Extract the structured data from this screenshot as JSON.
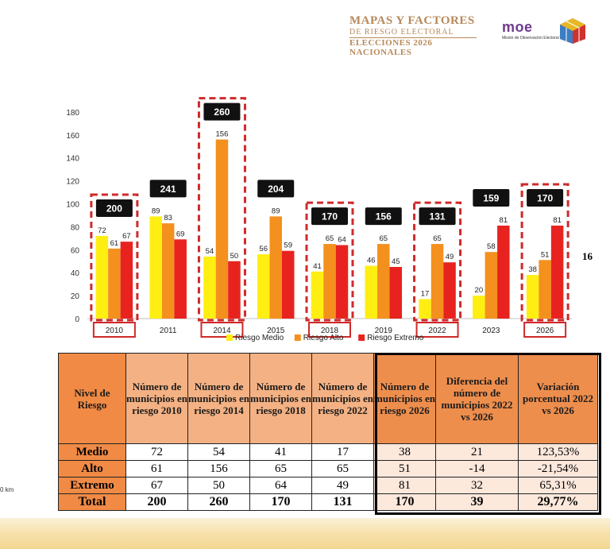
{
  "header": {
    "title_line1": "MAPAS Y FACTORES",
    "title_line2": "DE RIESGO ELECTORAL",
    "title_line3": "ELECCIONES 2026",
    "title_line4": "NACIONALES",
    "org_logo": "moe",
    "org_name": "Misión de Observación Electoral"
  },
  "side_value": "16",
  "side_unit": "0 km",
  "colors": {
    "medio": "#ffee12",
    "alto": "#f4901e",
    "extremo": "#e8231f",
    "highlight": "#cf2a2a",
    "total_box": "#000000"
  },
  "chart_data": {
    "type": "bar",
    "categories": [
      "2010",
      "2011",
      "2014",
      "2015",
      "2018",
      "2019",
      "2022",
      "2023",
      "2026"
    ],
    "series": [
      {
        "name": "Riesgo Medio",
        "values": [
          72,
          89,
          54,
          56,
          41,
          46,
          17,
          20,
          38
        ]
      },
      {
        "name": "Riesgo Alto",
        "values": [
          61,
          83,
          156,
          89,
          65,
          65,
          65,
          58,
          51
        ]
      },
      {
        "name": "Riesgo Extremo",
        "values": [
          67,
          69,
          50,
          59,
          64,
          45,
          49,
          81,
          81
        ]
      }
    ],
    "totals": [
      200,
      241,
      260,
      204,
      170,
      156,
      131,
      159,
      170
    ],
    "highlighted": [
      "2010",
      "2014",
      "2018",
      "2022",
      "2026"
    ],
    "ylim": [
      0,
      180
    ],
    "yticks": [
      0,
      20,
      40,
      60,
      80,
      100,
      120,
      140,
      160,
      180
    ],
    "legend": "bottom"
  },
  "table": {
    "headers": [
      "Nivel de Riesgo",
      "Número de municipios en riesgo 2010",
      "Número de municipios en riesgo 2014",
      "Número de municipios en riesgo 2018",
      "Número de municipios en riesgo 2022",
      "Número de municipios en riesgo 2026",
      "Diferencia del número de municipios 2022 vs 2026",
      "Variación porcentual 2022 vs 2026"
    ],
    "rows": [
      [
        "Medio",
        "72",
        "54",
        "41",
        "17",
        "38",
        "21",
        "123,53%"
      ],
      [
        "Alto",
        "61",
        "156",
        "65",
        "65",
        "51",
        "-14",
        "-21,54%"
      ],
      [
        "Extremo",
        "67",
        "50",
        "64",
        "49",
        "81",
        "32",
        "65,31%"
      ],
      [
        "Total",
        "200",
        "260",
        "170",
        "131",
        "170",
        "39",
        "29,77%"
      ]
    ]
  }
}
